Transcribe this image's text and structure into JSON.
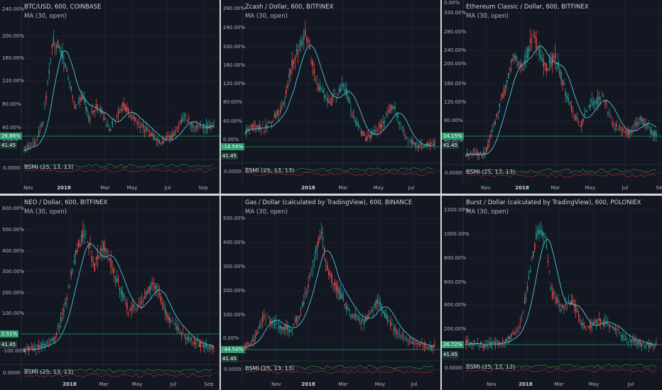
{
  "colors": {
    "background": "#131722",
    "grid": "#1e2230",
    "candle_up": "#26a69a",
    "candle_down": "#ef5350",
    "ma_line": "#52c5d8",
    "badge_green": "#2e9a6e",
    "badge_dark": "#1f3a36",
    "label": "#b2b5be"
  },
  "panels": [
    {
      "title": "BTC/USD, 600, COINBASE",
      "ma_label": "MA (30, open)",
      "indicator_label": "BSMI (25, 13, 13)",
      "indicator_value": "0.0000",
      "price_badge": "26.86%",
      "ma_badge": "41.45",
      "y_ticks": [
        "240.00%",
        "200.00%",
        "160.00%",
        "120.00%",
        "80.00%",
        "40.00%",
        "0.00%"
      ],
      "x_ticks": [
        "Nov",
        "2018",
        "Mar",
        "May",
        "Jul",
        "Sep"
      ]
    },
    {
      "title": "Zcash / Dollar, 600, BITFINEX",
      "ma_label": "MA (30, open)",
      "indicator_label": "BSMI (25, 13, 13)",
      "indicator_value": "0.0000",
      "price_badge": "-14.54%",
      "ma_badge": "41.45",
      "y_ticks": [
        "280.00%",
        "240.00%",
        "200.00%",
        "160.00%",
        "120.00%",
        "80.00%",
        "40.00%",
        "0.00%"
      ],
      "x_ticks": [
        "2018",
        "Mar",
        "May",
        "Jul"
      ]
    },
    {
      "title": "Ethereum Classic / Dollar, 600, BITFINEX",
      "ma_label": "MA (30, open)",
      "indicator_label": "BSMI (25, 13, 13)",
      "indicator_value": "0.0000",
      "price_badge": "34.15%",
      "ma_badge": "41.45",
      "y_ticks": [
        "320.00%",
        "280.00%",
        "240.00%",
        "200.00%",
        "160.00%",
        "120.00%",
        "80.00%",
        "40.00%",
        "0.00%"
      ],
      "x_ticks": [
        "Nov",
        "2018",
        "Mar",
        "May",
        "Jul",
        "Se"
      ]
    },
    {
      "title": "NEO / Dollar, 600, BITFINEX",
      "ma_label": "MA (30, open)",
      "indicator_label": "BSMI (25, 13, 13)",
      "indicator_value": "0.0000",
      "price_badge": "2.51%",
      "ma_badge": "41.45",
      "y_ticks": [
        "600.00%",
        "500.00%",
        "400.00%",
        "300.00%",
        "200.00%",
        "100.00%",
        "-100.00%"
      ],
      "x_ticks": [
        "2018",
        "Mar",
        "May",
        "Jul",
        "Sep"
      ]
    },
    {
      "title": "Gas / Dollar (calculated by TradingView), 600, BINANCE",
      "ma_label": "MA (30, open)",
      "indicator_label": "BSMI (25, 13, 13)",
      "indicator_value": "0.0000",
      "price_badge": "-44.54%",
      "ma_badge": "41.45",
      "y_ticks": [
        "500.00%",
        "400.00%",
        "300.00%",
        "200.00%",
        "100.00%",
        "0.00%"
      ],
      "x_ticks": [
        "Nov",
        "2018",
        "Mar",
        "May",
        "Jul"
      ]
    },
    {
      "title": "Burst / Dollar (calculated by TradingView), 600, POLONIEX",
      "ma_label": "MA (30, open)",
      "indicator_label": "BSMI (25, 13, 13)",
      "indicator_value": "0.0000",
      "price_badge": "26.72%",
      "ma_badge": "41.45",
      "y_ticks": [
        "1200.00%",
        "1000.00%",
        "800.00%",
        "600.00%",
        "400.00%",
        "200.00%"
      ],
      "x_ticks": [
        "Nov",
        "2018",
        "Mar",
        "May",
        "Jul"
      ]
    }
  ]
}
